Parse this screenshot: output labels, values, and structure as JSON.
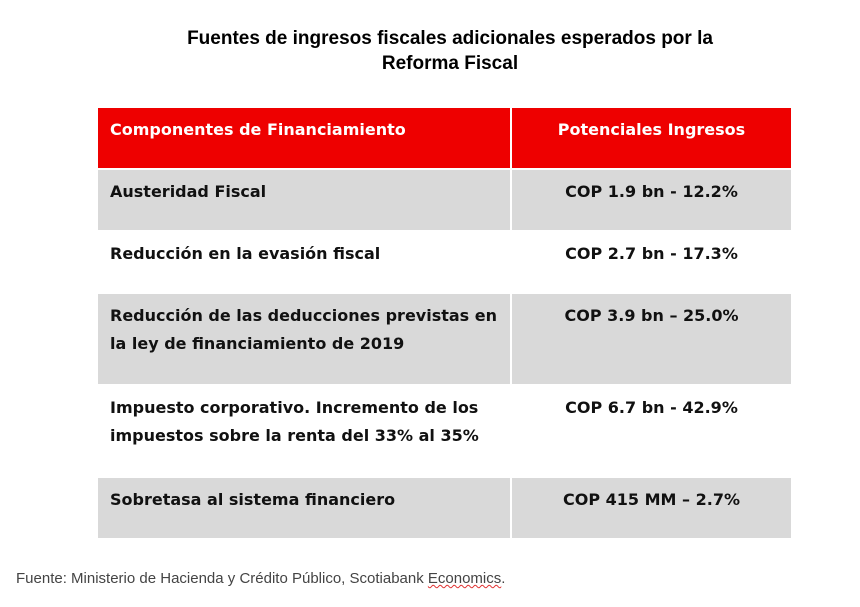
{
  "title": {
    "line1": "Fuentes de ingresos fiscales adicionales esperados por la",
    "line2": "Reforma Fiscal"
  },
  "table": {
    "headers": [
      "Componentes de Financiamiento",
      "Potenciales Ingresos"
    ],
    "rows": [
      {
        "component": "Austeridad Fiscal",
        "income": "COP 1.9 bn - 12.2%"
      },
      {
        "component": "Reducción en la evasión fiscal",
        "income": "COP 2.7 bn - 17.3%"
      },
      {
        "component": "Reducción de las deducciones previstas en la ley de financiamiento de 2019",
        "income": "COP 3.9 bn – 25.0%"
      },
      {
        "component": "Impuesto corporativo. Incremento de los impuestos sobre la renta del 33% al 35%",
        "income": "COP 6.7 bn - 42.9%"
      },
      {
        "component": "Sobretasa al sistema financiero",
        "income": "COP 415 MM – 2.7%"
      }
    ]
  },
  "source": {
    "prefix": "Fuente: Ministerio de Hacienda y Crédito Público, Scotiabank ",
    "flagged_word": "Economics",
    "suffix": "."
  },
  "colors": {
    "header_background": "#ee0000",
    "header_text": "#ffffff",
    "shaded_row": "#d9d9d9",
    "spellcheck_underline": "#e03030"
  }
}
